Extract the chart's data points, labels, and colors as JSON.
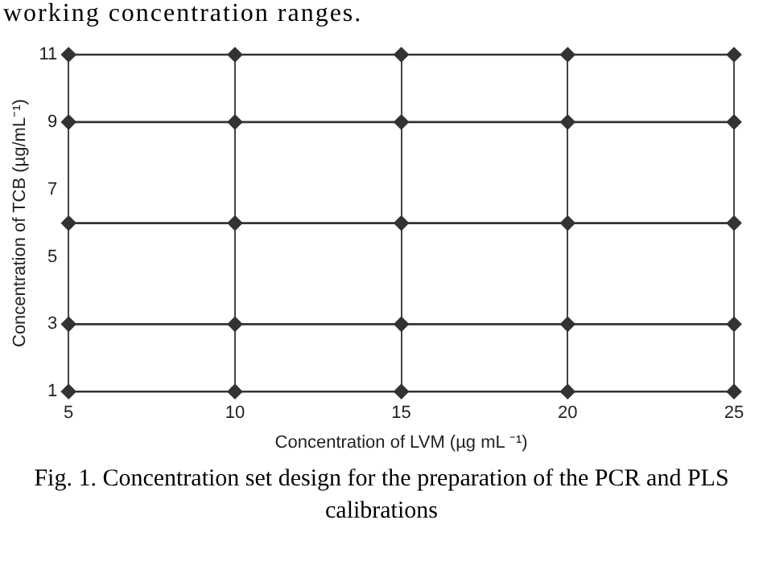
{
  "chart_data": {
    "type": "line",
    "xlabel": "Concentration of LVM (µg mL ⁻¹)",
    "ylabel": "Concentration of TCB (µg/mL⁻¹)",
    "annotations": [
      "working concentration ranges.",
      "Fig. 1. Concentration set design for the preparation of the PCR and PLS calibrations"
    ],
    "x": [
      5,
      10,
      15,
      20,
      25
    ],
    "series": [
      {
        "color": "#333333",
        "values": [
          1,
          1,
          1,
          1,
          1
        ]
      },
      {
        "color": "#333333",
        "values": [
          3,
          3,
          3,
          3,
          3
        ]
      },
      {
        "color": "#333333",
        "values": [
          6,
          6,
          6,
          6,
          6
        ]
      },
      {
        "color": "#333333",
        "values": [
          9,
          9,
          9,
          9,
          9
        ]
      },
      {
        "color": "#333333",
        "values": [
          11,
          11,
          11,
          11,
          11
        ]
      }
    ],
    "xlim": [
      5,
      25
    ],
    "xticks": [
      5,
      10,
      15,
      20,
      25
    ],
    "ylim": [
      1,
      11
    ],
    "yticks": [
      1,
      3,
      5,
      7,
      9,
      11
    ],
    "grid": "x",
    "marker": "diamond",
    "line_style": "solid",
    "legend": false
  }
}
